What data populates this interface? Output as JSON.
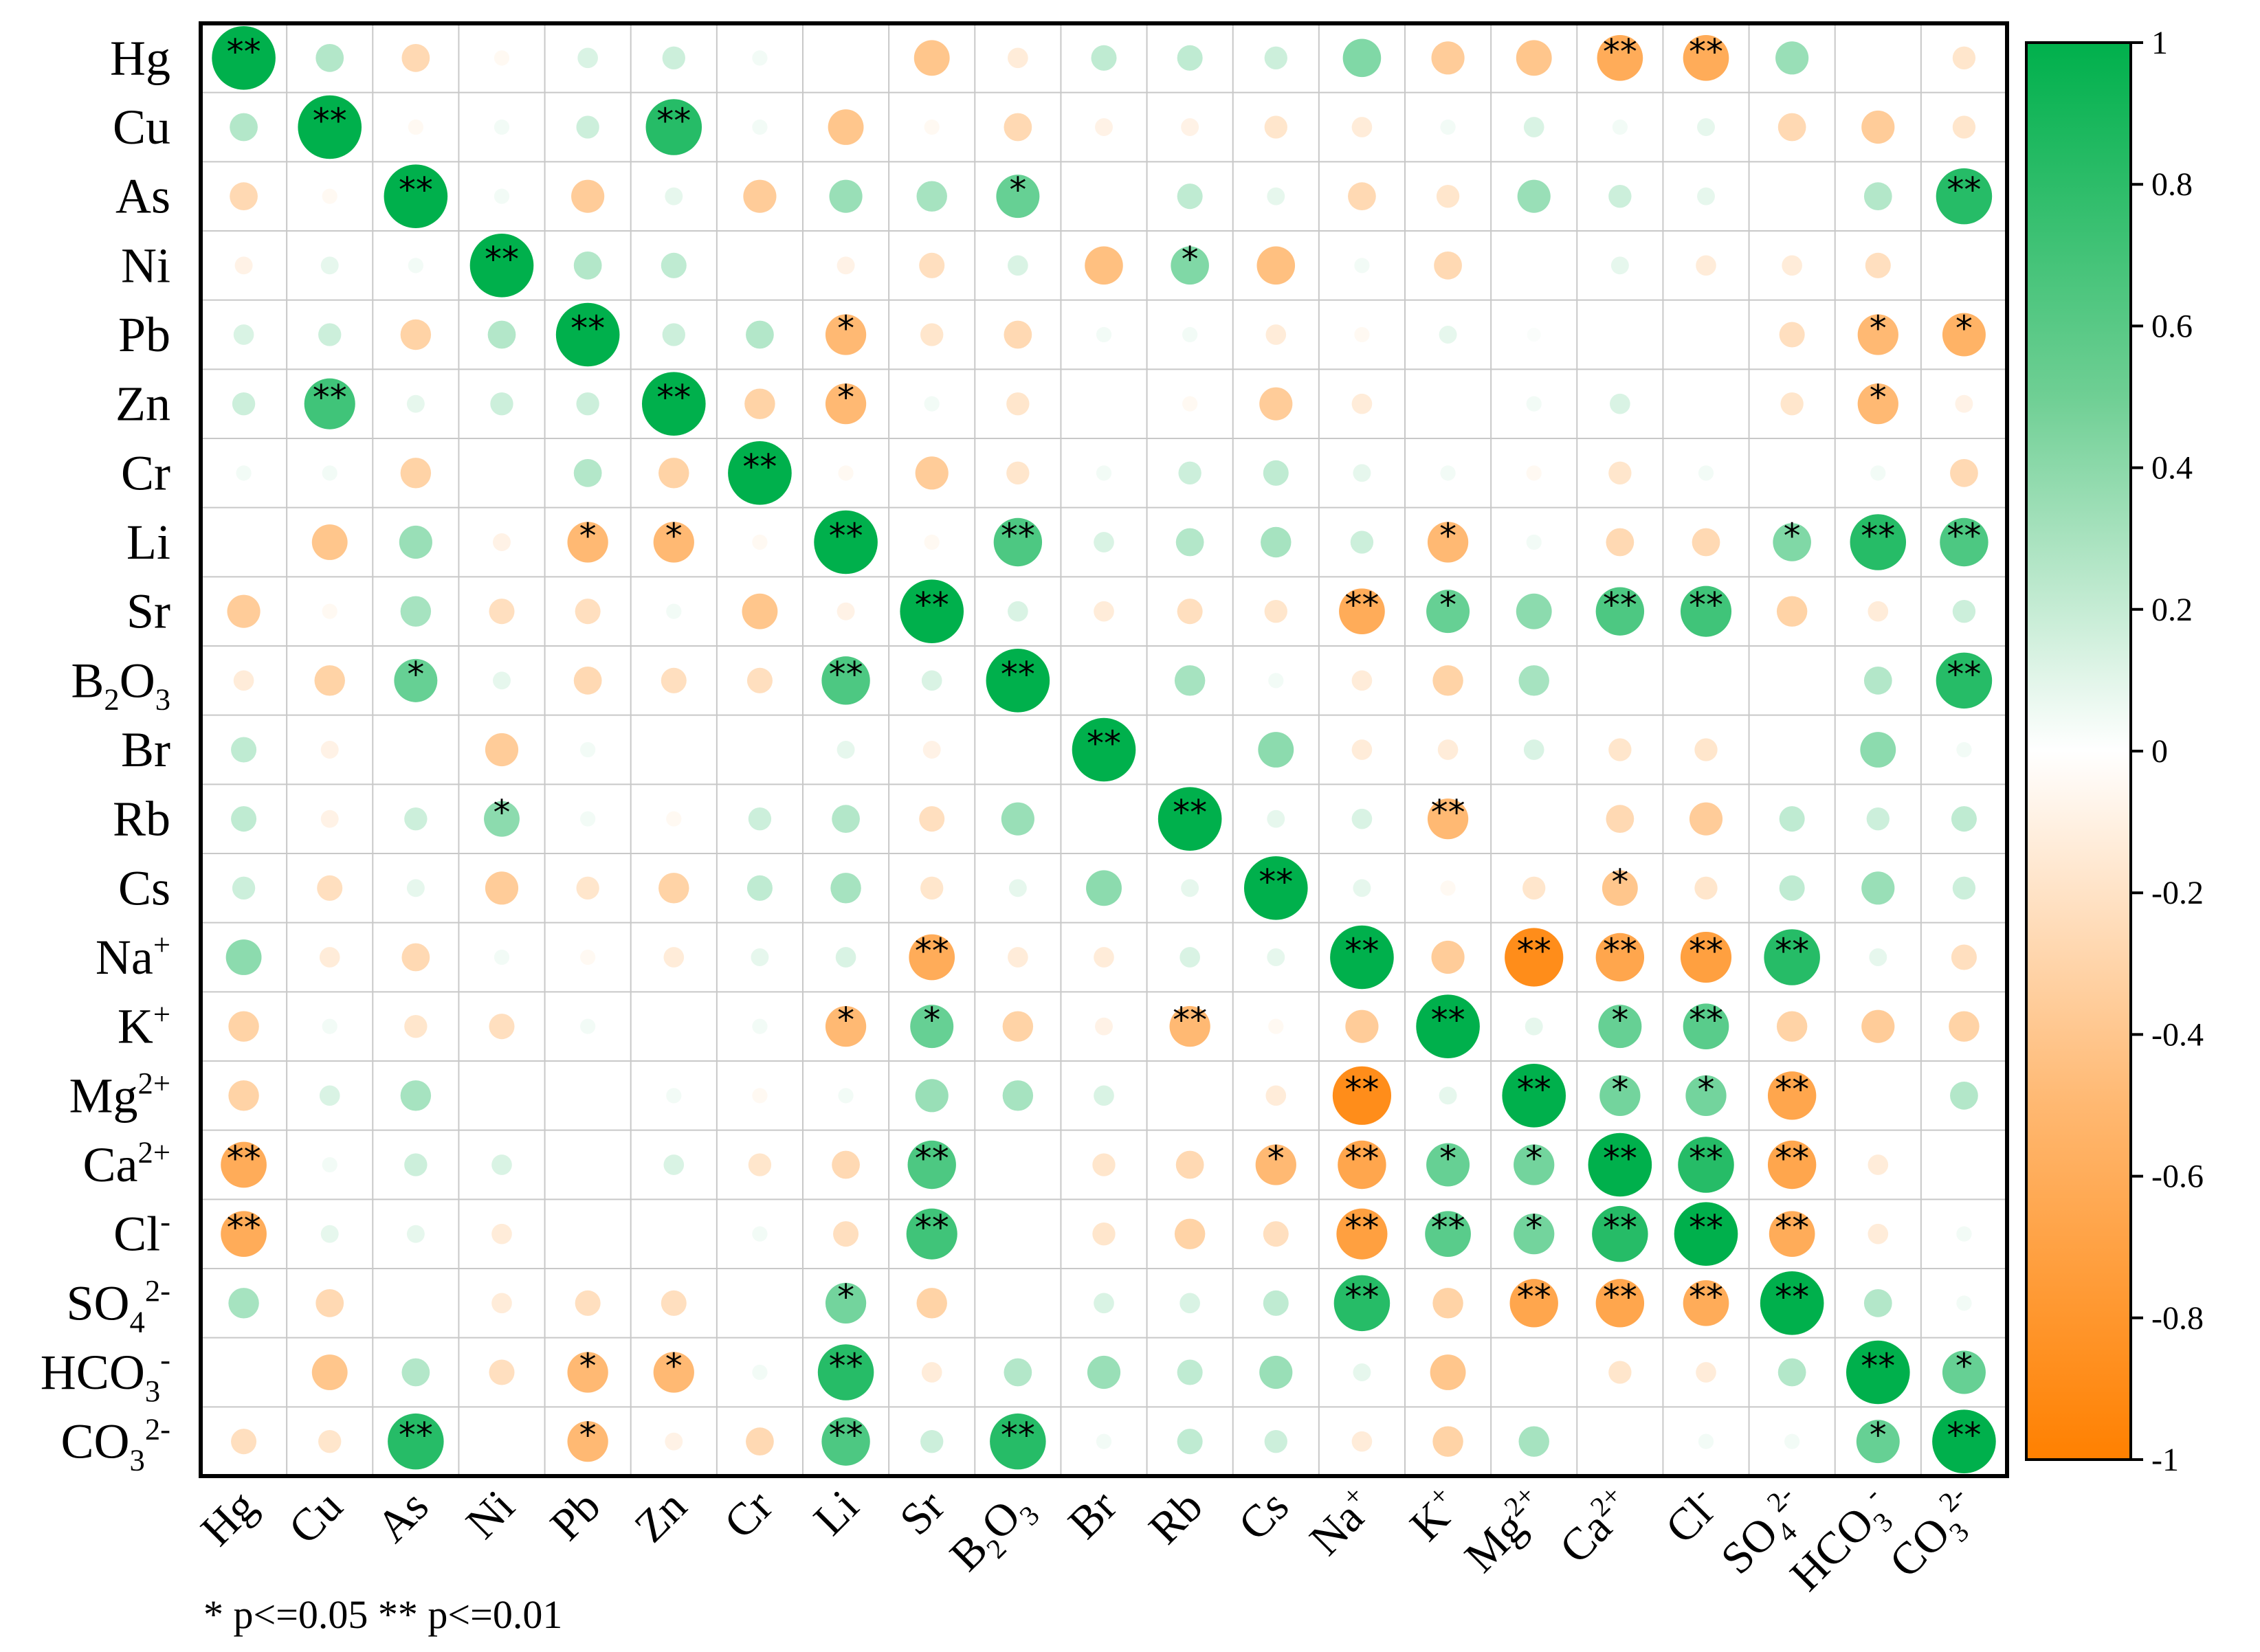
{
  "chart_data": {
    "type": "heatmap",
    "title": "",
    "variables": [
      "Hg",
      "Cu",
      "As",
      "Ni",
      "Pb",
      "Zn",
      "Cr",
      "Li",
      "Sr",
      "B2O3",
      "Br",
      "Rb",
      "Cs",
      "Na+",
      "K+",
      "Mg2+",
      "Ca2+",
      "Cl-",
      "SO42-",
      "HCO3-",
      "CO32-"
    ],
    "row_labels": [
      {
        "base": "Hg",
        "sub": "",
        "sup": ""
      },
      {
        "base": "Cu",
        "sub": "",
        "sup": ""
      },
      {
        "base": "As",
        "sub": "",
        "sup": ""
      },
      {
        "base": "Ni",
        "sub": "",
        "sup": ""
      },
      {
        "base": "Pb",
        "sub": "",
        "sup": ""
      },
      {
        "base": "Zn",
        "sub": "",
        "sup": ""
      },
      {
        "base": "Cr",
        "sub": "",
        "sup": ""
      },
      {
        "base": "Li",
        "sub": "",
        "sup": ""
      },
      {
        "base": "Sr",
        "sub": "",
        "sup": ""
      },
      {
        "base": "B",
        "sub": "2",
        "base2": "O",
        "sub2": "3",
        "sup": ""
      },
      {
        "base": "Br",
        "sub": "",
        "sup": ""
      },
      {
        "base": "Rb",
        "sub": "",
        "sup": ""
      },
      {
        "base": "Cs",
        "sub": "",
        "sup": ""
      },
      {
        "base": "Na",
        "sub": "",
        "sup": "+"
      },
      {
        "base": "K",
        "sub": "",
        "sup": "+"
      },
      {
        "base": "Mg",
        "sub": "",
        "sup": "2+"
      },
      {
        "base": "Ca",
        "sub": "",
        "sup": "2+"
      },
      {
        "base": "Cl",
        "sub": "",
        "sup": "-"
      },
      {
        "base": "SO",
        "sub": "4",
        "sup": "2-"
      },
      {
        "base": "HCO",
        "sub": "3",
        "sup": "-"
      },
      {
        "base": "CO",
        "sub": "3",
        "sup": "2-"
      }
    ],
    "matrix": [
      [
        1.0,
        0.3,
        -0.3,
        -0.05,
        0.15,
        0.2,
        0.05,
        0.0,
        -0.45,
        -0.15,
        0.25,
        0.25,
        0.2,
        0.5,
        -0.4,
        -0.45,
        -0.65,
        -0.65,
        0.4,
        0.0,
        -0.2
      ],
      [
        0.3,
        1.0,
        -0.05,
        0.05,
        0.2,
        0.85,
        0.05,
        -0.45,
        -0.05,
        -0.3,
        -0.1,
        -0.1,
        -0.2,
        -0.15,
        0.05,
        0.15,
        0.05,
        0.1,
        -0.3,
        -0.4,
        -0.2
      ],
      [
        -0.3,
        -0.05,
        1.0,
        0.05,
        -0.4,
        0.1,
        -0.4,
        0.4,
        0.35,
        0.6,
        0.0,
        0.25,
        0.1,
        -0.3,
        -0.2,
        0.4,
        0.2,
        0.1,
        0.0,
        0.3,
        0.85
      ],
      [
        -0.1,
        0.1,
        0.05,
        1.0,
        0.3,
        0.25,
        0.0,
        -0.1,
        -0.25,
        0.15,
        -0.5,
        0.5,
        -0.5,
        0.05,
        -0.3,
        0.0,
        0.1,
        -0.15,
        -0.15,
        -0.25,
        0.0
      ],
      [
        0.15,
        0.2,
        -0.35,
        0.3,
        1.0,
        0.2,
        0.3,
        -0.55,
        -0.2,
        -0.3,
        0.05,
        0.05,
        -0.15,
        -0.05,
        0.1,
        0.02,
        0.0,
        0.0,
        -0.25,
        -0.55,
        -0.6
      ],
      [
        0.2,
        0.75,
        0.1,
        0.2,
        0.2,
        1.0,
        -0.35,
        -0.55,
        0.05,
        -0.2,
        0.0,
        -0.05,
        -0.4,
        -0.15,
        0.0,
        0.05,
        0.15,
        0.0,
        -0.2,
        -0.55,
        -0.1
      ],
      [
        0.05,
        0.05,
        -0.35,
        0.0,
        0.3,
        -0.35,
        1.0,
        -0.05,
        -0.4,
        -0.2,
        0.05,
        0.2,
        0.25,
        0.1,
        0.05,
        -0.05,
        -0.2,
        0.05,
        0.0,
        0.05,
        -0.3
      ],
      [
        0.0,
        -0.45,
        0.4,
        -0.1,
        -0.55,
        -0.55,
        -0.05,
        1.0,
        -0.05,
        0.7,
        0.15,
        0.3,
        0.35,
        0.2,
        -0.55,
        0.05,
        -0.3,
        -0.3,
        0.5,
        0.85,
        0.7
      ],
      [
        -0.4,
        -0.05,
        0.35,
        -0.25,
        -0.25,
        0.05,
        -0.45,
        -0.1,
        1.0,
        0.15,
        -0.15,
        -0.25,
        -0.2,
        -0.65,
        0.6,
        0.45,
        0.7,
        0.75,
        -0.35,
        -0.15,
        0.2
      ],
      [
        -0.15,
        -0.35,
        0.6,
        0.1,
        -0.3,
        -0.25,
        -0.25,
        0.7,
        0.15,
        1.0,
        0.0,
        0.35,
        0.05,
        -0.15,
        -0.35,
        0.35,
        0.0,
        0.0,
        0.0,
        0.3,
        0.85
      ],
      [
        0.25,
        -0.1,
        0.0,
        -0.4,
        0.05,
        0.0,
        0.0,
        0.1,
        -0.1,
        0.0,
        1.0,
        0.0,
        0.45,
        -0.15,
        -0.15,
        0.15,
        -0.2,
        -0.2,
        0.0,
        0.45,
        0.05
      ],
      [
        0.25,
        -0.1,
        0.2,
        0.45,
        0.05,
        -0.05,
        0.2,
        0.3,
        -0.25,
        0.4,
        0.0,
        1.0,
        0.1,
        0.15,
        -0.55,
        0.0,
        -0.3,
        -0.4,
        0.25,
        0.2,
        0.25
      ],
      [
        0.2,
        -0.25,
        0.1,
        -0.4,
        -0.2,
        -0.35,
        0.25,
        0.35,
        -0.2,
        0.1,
        0.45,
        0.1,
        1.0,
        0.1,
        -0.05,
        -0.2,
        -0.45,
        -0.2,
        0.25,
        0.4,
        0.2
      ],
      [
        0.45,
        -0.15,
        -0.3,
        0.05,
        -0.05,
        -0.15,
        0.1,
        0.15,
        -0.65,
        -0.15,
        -0.15,
        0.15,
        0.1,
        1.0,
        -0.4,
        -0.9,
        -0.7,
        -0.75,
        0.85,
        0.1,
        -0.25
      ],
      [
        -0.35,
        0.05,
        -0.2,
        -0.25,
        0.05,
        0.0,
        0.05,
        -0.55,
        0.6,
        -0.35,
        -0.1,
        -0.55,
        -0.05,
        -0.4,
        1.0,
        0.1,
        0.6,
        0.65,
        -0.35,
        -0.4,
        -0.35
      ],
      [
        -0.35,
        0.15,
        0.35,
        0.0,
        0.0,
        0.05,
        -0.05,
        0.05,
        0.4,
        0.35,
        0.15,
        0.0,
        -0.15,
        -0.9,
        0.1,
        1.0,
        0.55,
        0.55,
        -0.7,
        0.0,
        0.3
      ],
      [
        -0.65,
        0.05,
        0.2,
        0.15,
        0.0,
        0.15,
        -0.2,
        -0.3,
        0.7,
        0.0,
        -0.2,
        -0.3,
        -0.55,
        -0.7,
        0.6,
        0.55,
        1.0,
        0.85,
        -0.7,
        -0.15,
        0.0
      ],
      [
        -0.65,
        0.1,
        0.1,
        -0.15,
        0.0,
        0.0,
        0.05,
        -0.25,
        0.75,
        0.0,
        -0.2,
        -0.35,
        -0.25,
        -0.75,
        0.65,
        0.55,
        0.85,
        1.0,
        -0.65,
        -0.15,
        0.05
      ],
      [
        0.35,
        -0.3,
        0.0,
        -0.15,
        -0.25,
        -0.25,
        0.0,
        0.55,
        -0.35,
        0.0,
        0.15,
        0.15,
        0.25,
        0.85,
        -0.35,
        -0.7,
        -0.7,
        -0.65,
        1.0,
        0.3,
        0.05
      ],
      [
        0.0,
        -0.45,
        0.3,
        -0.25,
        -0.55,
        -0.55,
        0.05,
        0.85,
        -0.15,
        0.3,
        0.4,
        0.25,
        0.4,
        0.1,
        -0.45,
        0.0,
        -0.2,
        -0.15,
        0.3,
        1.0,
        0.6
      ],
      [
        -0.25,
        -0.2,
        0.85,
        0.0,
        -0.55,
        -0.1,
        -0.3,
        0.7,
        0.2,
        0.85,
        0.05,
        0.25,
        0.2,
        -0.15,
        -0.35,
        0.35,
        0.0,
        0.05,
        0.05,
        0.6,
        1.0
      ]
    ],
    "significance": [
      [
        "**",
        "",
        "",
        "",
        "",
        "",
        "",
        "",
        "",
        "",
        "",
        "",
        "",
        "",
        "",
        "",
        "**",
        "**",
        "",
        "",
        ""
      ],
      [
        "",
        "**",
        "",
        "",
        "",
        "**",
        "",
        "",
        "",
        "",
        "",
        "",
        "",
        "",
        "",
        "",
        "",
        "",
        "",
        "",
        ""
      ],
      [
        "",
        "",
        "**",
        "",
        "",
        "",
        "",
        "",
        "",
        "*",
        "",
        "",
        "",
        "",
        "",
        "",
        "",
        "",
        "",
        "",
        "**"
      ],
      [
        "",
        "",
        "",
        "**",
        "",
        "",
        "",
        "",
        "",
        "",
        "",
        "*",
        "",
        "",
        "",
        "",
        "",
        "",
        "",
        "",
        ""
      ],
      [
        "",
        "",
        "",
        "",
        "**",
        "",
        "",
        "*",
        "",
        "",
        "",
        "",
        "",
        "",
        "",
        "",
        "",
        "",
        "",
        "*",
        "*"
      ],
      [
        "",
        "**",
        "",
        "",
        "",
        "**",
        "",
        "*",
        "",
        "",
        "",
        "",
        "",
        "",
        "",
        "",
        "",
        "",
        "",
        "*",
        ""
      ],
      [
        "",
        "",
        "",
        "",
        "",
        "",
        "**",
        "",
        "",
        "",
        "",
        "",
        "",
        "",
        "",
        "",
        "",
        "",
        "",
        "",
        ""
      ],
      [
        "",
        "",
        "",
        "",
        "*",
        "*",
        "",
        "**",
        "",
        "**",
        "",
        "",
        "",
        "",
        "*",
        "",
        "",
        "",
        "*",
        "**",
        "**"
      ],
      [
        "",
        "",
        "",
        "",
        "",
        "",
        "",
        "",
        "**",
        "",
        "",
        "",
        "",
        "**",
        "*",
        "",
        "**",
        "**",
        "",
        "",
        ""
      ],
      [
        "",
        "",
        "*",
        "",
        "",
        "",
        "",
        "**",
        "",
        "**",
        "",
        "",
        "",
        "",
        "",
        "",
        "",
        "",
        "",
        "",
        "**"
      ],
      [
        "",
        "",
        "",
        "",
        "",
        "",
        "",
        "",
        "",
        "",
        "**",
        "",
        "",
        "",
        "",
        "",
        "",
        "",
        "",
        "",
        ""
      ],
      [
        "",
        "",
        "",
        "*",
        "",
        "",
        "",
        "",
        "",
        "",
        "",
        "**",
        "",
        "",
        "**",
        "",
        "",
        "",
        "",
        "",
        ""
      ],
      [
        "",
        "",
        "",
        "",
        "",
        "",
        "",
        "",
        "",
        "",
        "",
        "",
        "**",
        "",
        "",
        "",
        "*",
        "",
        "",
        "",
        ""
      ],
      [
        "",
        "",
        "",
        "",
        "",
        "",
        "",
        "",
        "**",
        "",
        "",
        "",
        "",
        "**",
        "",
        "**",
        "**",
        "**",
        "**",
        "",
        ""
      ],
      [
        "",
        "",
        "",
        "",
        "",
        "",
        "",
        "*",
        "*",
        "",
        "",
        "**",
        "",
        "",
        "**",
        "",
        "*",
        "**",
        "",
        "",
        ""
      ],
      [
        "",
        "",
        "",
        "",
        "",
        "",
        "",
        "",
        "",
        "",
        "",
        "",
        "",
        "**",
        "",
        "**",
        "*",
        "*",
        "**",
        "",
        ""
      ],
      [
        "**",
        "",
        "",
        "",
        "",
        "",
        "",
        "",
        "**",
        "",
        "",
        "",
        "*",
        "**",
        "*",
        "*",
        "**",
        "**",
        "**",
        "",
        ""
      ],
      [
        "**",
        "",
        "",
        "",
        "",
        "",
        "",
        "",
        "**",
        "",
        "",
        "",
        "",
        "**",
        "**",
        "*",
        "**",
        "**",
        "**",
        "",
        ""
      ],
      [
        "",
        "",
        "",
        "",
        "",
        "",
        "",
        "*",
        "",
        "",
        "",
        "",
        "",
        "**",
        "",
        "**",
        "**",
        "**",
        "**",
        "",
        ""
      ],
      [
        "",
        "",
        "",
        "",
        "*",
        "*",
        "",
        "**",
        "",
        "",
        "",
        "",
        "",
        "",
        "",
        "",
        "",
        "",
        "",
        "**",
        "*"
      ],
      [
        "",
        "",
        "**",
        "",
        "*",
        "",
        "",
        "**",
        "",
        "**",
        "",
        "",
        "",
        "",
        "",
        "",
        "",
        "",
        "",
        "*",
        "**"
      ]
    ],
    "colorbar": {
      "ticks": [
        1,
        0.8,
        0.6,
        0.4,
        0.2,
        0,
        -0.2,
        -0.4,
        -0.6,
        -0.8,
        -1
      ],
      "tick_labels": [
        "1",
        "0.8",
        "0.6",
        "0.4",
        "0.2",
        "0",
        "-0.2",
        "-0.4",
        "-0.6",
        "-0.8",
        "-1"
      ],
      "range": [
        -1,
        1
      ]
    },
    "colors": {
      "positive": "#00b04c",
      "neutral": "#ffffff",
      "negative": "#ff8000",
      "grid": "#c8c8c8",
      "frame": "#000000"
    },
    "footnote": "* p<=0.05   ** p<=0.01"
  }
}
